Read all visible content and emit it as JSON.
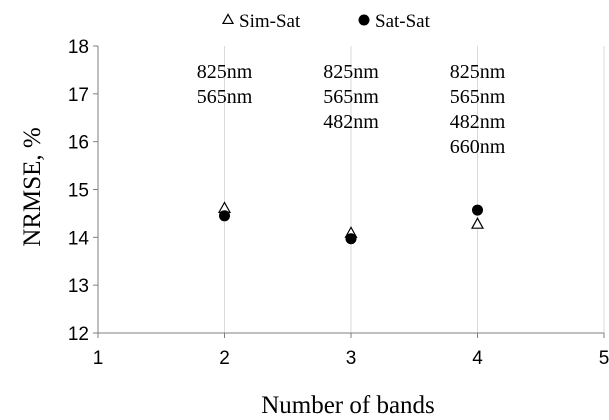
{
  "chart_data": {
    "type": "scatter",
    "title": "",
    "xlabel": "Number of bands",
    "ylabel": "NRMSE, %",
    "xlim": [
      1,
      5
    ],
    "ylim": [
      12,
      18
    ],
    "x_ticks": [
      1,
      2,
      3,
      4,
      5
    ],
    "y_ticks": [
      12,
      13,
      14,
      15,
      16,
      17,
      18
    ],
    "grid": "vertical",
    "legend_position": "top-center",
    "series": [
      {
        "name": "Sim-Sat",
        "marker": "open-triangle",
        "color": "#000000",
        "x": [
          2,
          3,
          4
        ],
        "y": [
          14.6,
          14.08,
          14.27
        ]
      },
      {
        "name": "Sat-Sat",
        "marker": "filled-circle",
        "color": "#000000",
        "x": [
          2,
          3,
          4
        ],
        "y": [
          14.45,
          13.97,
          14.57
        ]
      }
    ],
    "annotations": [
      {
        "x": 2,
        "lines": [
          "825nm",
          "565nm"
        ]
      },
      {
        "x": 3,
        "lines": [
          "825nm",
          "565nm",
          "482nm"
        ]
      },
      {
        "x": 4,
        "lines": [
          "825nm",
          "565nm",
          "482nm",
          "660nm"
        ]
      }
    ],
    "colors": {
      "grid": "#d9d9d9",
      "axis": "#7f7f7f",
      "marker": "#000000"
    }
  }
}
